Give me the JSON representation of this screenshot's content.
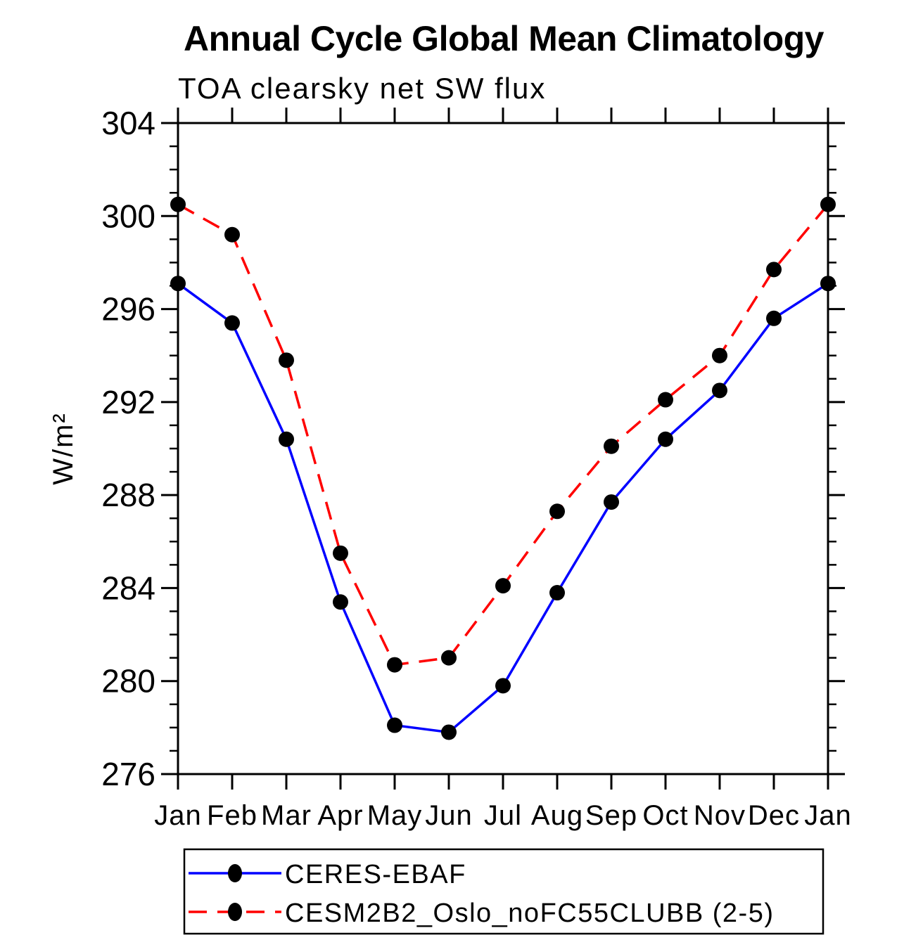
{
  "chart_data": {
    "type": "line",
    "title": "Annual Cycle Global Mean Climatology",
    "subtitle": "TOA clearsky net SW flux",
    "ylabel": "W/m²",
    "xlabel": "",
    "ylim": [
      276,
      304
    ],
    "y_major_tick_step": 4,
    "y_minor_tick_step": 1,
    "y_major_ticks": [
      276,
      280,
      284,
      288,
      292,
      296,
      300,
      304
    ],
    "categories": [
      "Jan",
      "Feb",
      "Mar",
      "Apr",
      "May",
      "Jun",
      "Jul",
      "Aug",
      "Sep",
      "Oct",
      "Nov",
      "Dec",
      "Jan"
    ],
    "grid": false,
    "legend_position": "bottom",
    "marker": "black-dot",
    "marker_color": "#000000",
    "axis_color": "#000000",
    "series": [
      {
        "name": "CERES-EBAF",
        "color": "#0000ff",
        "line_style": "solid",
        "values": [
          297.1,
          295.4,
          290.4,
          283.4,
          278.1,
          277.8,
          279.8,
          283.8,
          287.7,
          290.4,
          292.5,
          295.6,
          297.1
        ]
      },
      {
        "name": "CESM2B2_Oslo_noFC55CLUBB (2-5)",
        "color": "#ff0000",
        "line_style": "dashed",
        "values": [
          300.5,
          299.2,
          293.8,
          285.5,
          280.7,
          281.0,
          284.1,
          287.3,
          290.1,
          292.1,
          294.0,
          297.7,
          300.5
        ]
      }
    ]
  }
}
